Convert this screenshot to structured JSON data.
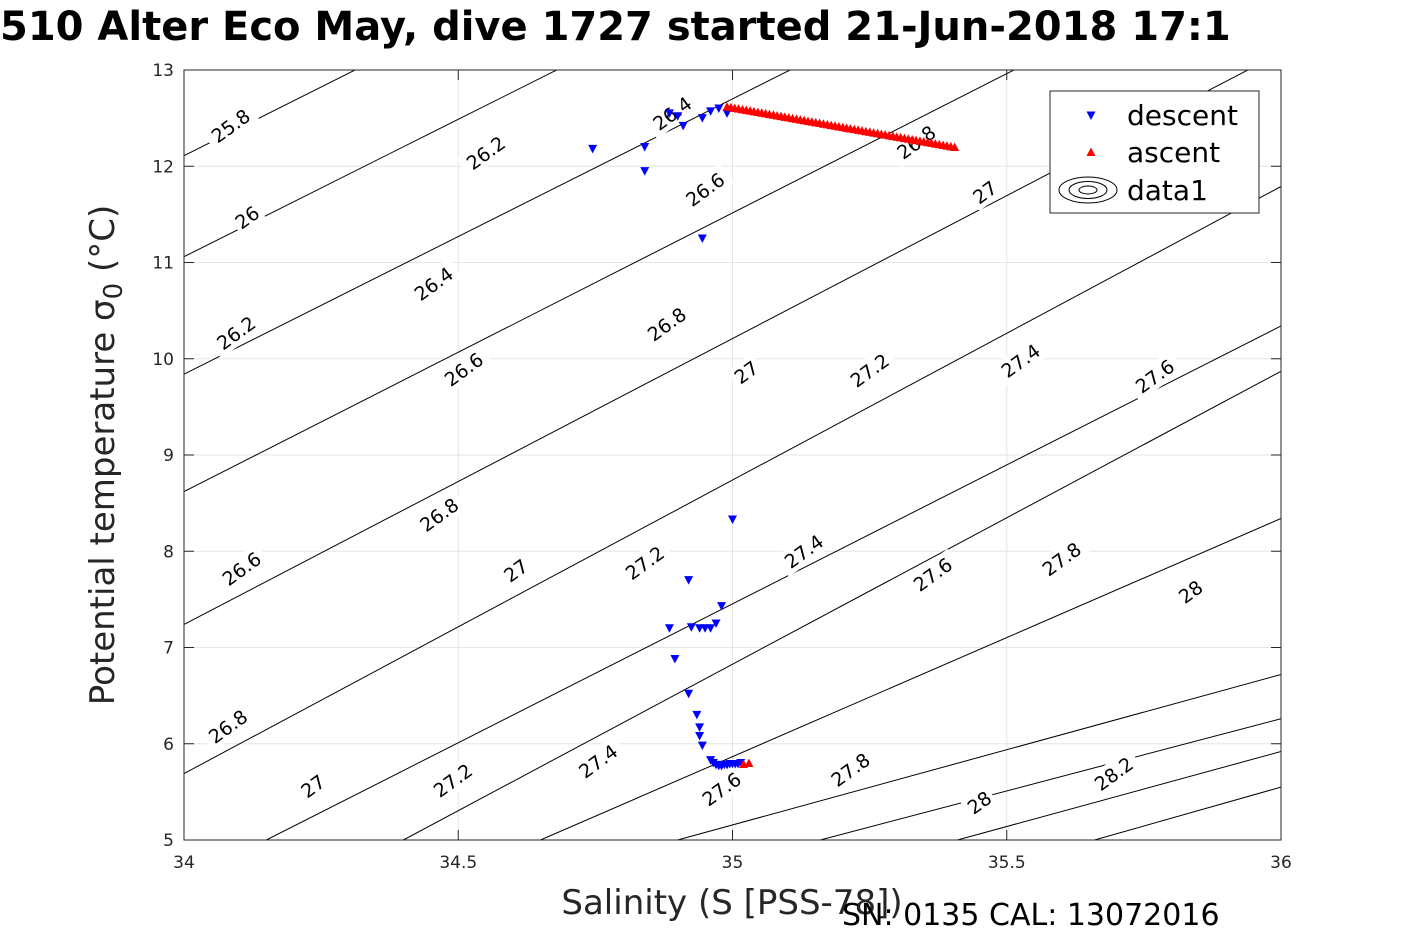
{
  "page": {
    "title": "510 Alter Eco May, dive 1727 started 21-Jun-2018 17:1",
    "footer": "SN: 0135  CAL: 13072016"
  },
  "chart_data": {
    "type": "scatter",
    "title": "510 Alter Eco May, dive 1727 started 21-Jun-2018 17:1",
    "xlabel": "Salinity (S [PSS-78])",
    "ylabel_main": "Potential temperature σ",
    "ylabel_sub": "0",
    "ylabel_unit": " (°C)",
    "xlim": [
      34,
      36
    ],
    "ylim": [
      5,
      13
    ],
    "xticks": [
      34,
      34.5,
      35,
      35.5,
      36
    ],
    "xtick_labels": [
      "34",
      "34.5",
      "35",
      "35.5",
      "36"
    ],
    "yticks": [
      5,
      6,
      7,
      8,
      9,
      10,
      11,
      12,
      13
    ],
    "ytick_labels": [
      "5",
      "6",
      "7",
      "8",
      "9",
      "10",
      "11",
      "12",
      "13"
    ],
    "grid": true,
    "legend": {
      "position": "top-right",
      "entries": [
        {
          "label": "descent",
          "marker": "triangle-down",
          "color": "#0000ff"
        },
        {
          "label": "ascent",
          "marker": "triangle-up",
          "color": "#ff0000"
        },
        {
          "label": "data1",
          "marker": "contour",
          "color": "#000000"
        }
      ]
    },
    "contours": {
      "name": "data1",
      "color": "#000000",
      "levels": [
        {
          "level": 25.8,
          "points": [
            [
              34,
              12.11
            ],
            [
              36,
              17.82
            ]
          ]
        },
        {
          "level": 26.0,
          "points": [
            [
              34,
              11.06
            ],
            [
              36,
              16.77
            ]
          ]
        },
        {
          "level": 26.2,
          "points": [
            [
              34,
              9.84
            ],
            [
              36,
              15.56
            ]
          ]
        },
        {
          "level": 26.4,
          "points": [
            [
              34,
              8.62
            ],
            [
              36,
              14.41
            ]
          ]
        },
        {
          "level": 26.6,
          "points": [
            [
              34,
              7.24
            ],
            [
              36,
              13.18
            ]
          ]
        },
        {
          "level": 26.8,
          "points": [
            [
              34,
              5.69
            ],
            [
              36,
              11.79
            ]
          ]
        },
        {
          "level": 27.0,
          "points": [
            [
              34.15,
              5.0
            ],
            [
              36,
              10.34
            ]
          ]
        },
        {
          "level": 27.2,
          "points": [
            [
              34.4,
              5.0
            ],
            [
              36,
              9.87
            ]
          ]
        },
        {
          "level": 27.4,
          "points": [
            [
              34.65,
              5.0
            ],
            [
              36,
              8.34
            ]
          ]
        },
        {
          "level": 27.6,
          "points": [
            [
              34.9,
              5.0
            ],
            [
              36,
              6.72
            ]
          ]
        },
        {
          "level": 27.8,
          "points": [
            [
              35.16,
              5.0
            ],
            [
              36,
              6.26
            ]
          ]
        },
        {
          "level": 28.0,
          "points": [
            [
              35.41,
              5.0
            ],
            [
              36,
              5.92
            ]
          ]
        },
        {
          "level": 28.2,
          "points": [
            [
              35.66,
              5.0
            ],
            [
              36,
              5.55
            ]
          ]
        }
      ],
      "labels": [
        {
          "text": "25.8",
          "x": 34.085,
          "y": 12.42
        },
        {
          "text": "26",
          "x": 34.115,
          "y": 11.47
        },
        {
          "text": "26.2",
          "x": 34.55,
          "y": 12.14
        },
        {
          "text": "26.2",
          "x": 34.095,
          "y": 10.27
        },
        {
          "text": "26.4",
          "x": 34.89,
          "y": 12.55
        },
        {
          "text": "26.4",
          "x": 34.455,
          "y": 10.78
        },
        {
          "text": "26.6",
          "x": 34.95,
          "y": 11.76
        },
        {
          "text": "26.6",
          "x": 34.51,
          "y": 9.89
        },
        {
          "text": "26.6",
          "x": 34.105,
          "y": 7.82
        },
        {
          "text": "26.8",
          "x": 35.335,
          "y": 12.25
        },
        {
          "text": "26.8",
          "x": 34.88,
          "y": 10.36
        },
        {
          "text": "26.8",
          "x": 34.465,
          "y": 8.38
        },
        {
          "text": "26.8",
          "x": 34.08,
          "y": 6.18
        },
        {
          "text": "27",
          "x": 35.46,
          "y": 11.73
        },
        {
          "text": "27",
          "x": 35.025,
          "y": 9.86
        },
        {
          "text": "27",
          "x": 34.605,
          "y": 7.8
        },
        {
          "text": "27",
          "x": 34.235,
          "y": 5.56
        },
        {
          "text": "27.2",
          "x": 35.25,
          "y": 9.88
        },
        {
          "text": "27.2",
          "x": 34.84,
          "y": 7.88
        },
        {
          "text": "27.2",
          "x": 34.49,
          "y": 5.62
        },
        {
          "text": "27.4",
          "x": 35.525,
          "y": 9.98
        },
        {
          "text": "27.4",
          "x": 35.13,
          "y": 8.0
        },
        {
          "text": "27.4",
          "x": 34.755,
          "y": 5.82
        },
        {
          "text": "27.6",
          "x": 35.77,
          "y": 9.82
        },
        {
          "text": "27.6",
          "x": 35.365,
          "y": 7.76
        },
        {
          "text": "27.6",
          "x": 34.98,
          "y": 5.53
        },
        {
          "text": "27.8",
          "x": 35.6,
          "y": 7.92
        },
        {
          "text": "27.8",
          "x": 35.215,
          "y": 5.73
        },
        {
          "text": "28",
          "x": 35.835,
          "y": 7.58
        },
        {
          "text": "28",
          "x": 35.45,
          "y": 5.39
        },
        {
          "text": "28.2",
          "x": 35.695,
          "y": 5.69
        }
      ]
    },
    "series": [
      {
        "name": "descent",
        "marker": "triangle-down",
        "color": "#0000ff",
        "points": [
          [
            34.745,
            12.18
          ],
          [
            34.84,
            12.2
          ],
          [
            34.84,
            11.95
          ],
          [
            34.885,
            12.55
          ],
          [
            34.9,
            12.52
          ],
          [
            34.91,
            12.42
          ],
          [
            34.945,
            12.5
          ],
          [
            34.96,
            12.57
          ],
          [
            34.975,
            12.6
          ],
          [
            34.99,
            12.55
          ],
          [
            34.945,
            11.25
          ],
          [
            35.0,
            8.33
          ],
          [
            34.92,
            7.7
          ],
          [
            34.98,
            7.43
          ],
          [
            34.885,
            7.2
          ],
          [
            34.925,
            7.21
          ],
          [
            34.94,
            7.2
          ],
          [
            34.95,
            7.2
          ],
          [
            34.96,
            7.2
          ],
          [
            34.97,
            7.25
          ],
          [
            34.895,
            6.88
          ],
          [
            34.92,
            6.52
          ],
          [
            34.935,
            6.3
          ],
          [
            34.94,
            6.17
          ],
          [
            34.94,
            6.08
          ],
          [
            34.945,
            5.98
          ],
          [
            34.96,
            5.83
          ],
          [
            34.965,
            5.8
          ],
          [
            34.97,
            5.78
          ],
          [
            34.975,
            5.77
          ],
          [
            34.98,
            5.77
          ],
          [
            34.985,
            5.78
          ],
          [
            34.99,
            5.78
          ],
          [
            34.995,
            5.79
          ],
          [
            35.0,
            5.79
          ],
          [
            35.005,
            5.79
          ],
          [
            35.01,
            5.79
          ],
          [
            35.015,
            5.8
          ]
        ]
      },
      {
        "name": "ascent",
        "marker": "triangle-up",
        "color": "#ff0000",
        "segments": [
          {
            "from": [
              34.99,
              12.62
            ],
            "to": [
              35.405,
              12.2
            ],
            "count": 60
          }
        ],
        "points": [
          [
            35.02,
            5.79
          ],
          [
            35.03,
            5.8
          ]
        ]
      }
    ]
  }
}
